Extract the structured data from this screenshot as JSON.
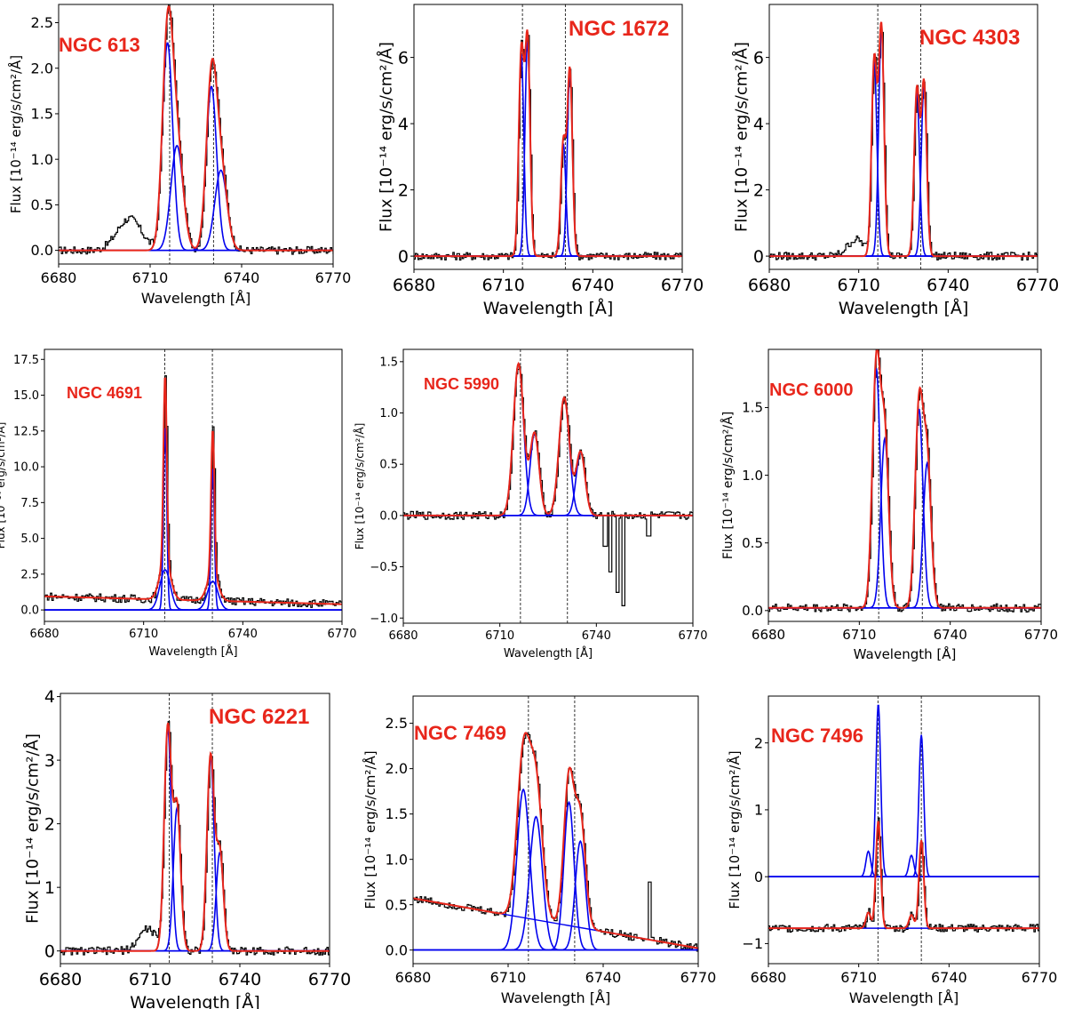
{
  "figure": {
    "description_colors": {
      "data": "#000000",
      "components": "#0000ee",
      "total_fit": "#e8261b",
      "title": "#e8261b",
      "reference_lines": "#333333"
    }
  },
  "chart_data": [
    {
      "id": "ngc613",
      "type": "line",
      "title": "NGC 613",
      "xlabel": "Wavelength [Å]",
      "ylabel": "Flux [10⁻¹⁴ erg/s/cm²/Å]",
      "xlim": [
        6680,
        6770
      ],
      "ylim": [
        -0.15,
        2.7
      ],
      "x_ticks": [
        "6680",
        "6710",
        "6740",
        "6770"
      ],
      "y_ticks": [
        "0.0",
        "0.5",
        "1.0",
        "1.5",
        "2.0",
        "2.5"
      ],
      "y_tick_values": [
        0,
        0.5,
        1.0,
        1.5,
        2.0,
        2.5
      ],
      "reference_lines": [
        6716.4,
        6730.8
      ],
      "continuum": [
        0.0,
        0.0
      ],
      "components": [
        {
          "center": 6715.7,
          "amp": 2.28,
          "sigma": 1.7
        },
        {
          "center": 6718.8,
          "amp": 1.15,
          "sigma": 2.0
        },
        {
          "center": 6730.1,
          "amp": 1.8,
          "sigma": 1.7
        },
        {
          "center": 6733.2,
          "amp": 0.88,
          "sigma": 2.0
        }
      ],
      "extra_features": [
        {
          "center": 6703,
          "amp": 0.35,
          "sigma": 4
        }
      ]
    },
    {
      "id": "ngc1672",
      "type": "line",
      "title": "NGC 1672",
      "xlabel": "Wavelength [Å]",
      "ylabel": "Flux [10⁻¹⁴ erg/s/cm²/Å]",
      "xlim": [
        6680,
        6770
      ],
      "ylim": [
        -0.4,
        7.6
      ],
      "x_ticks": [
        "6680",
        "6710",
        "6740",
        "6770"
      ],
      "y_ticks": [
        "0",
        "2",
        "4",
        "6"
      ],
      "y_tick_values": [
        0,
        2,
        4,
        6
      ],
      "reference_lines": [
        6716.4,
        6730.8
      ],
      "continuum": [
        0.0,
        0.0
      ],
      "components": [
        {
          "center": 6716.0,
          "amp": 6.1,
          "sigma": 0.85
        },
        {
          "center": 6718.1,
          "amp": 6.5,
          "sigma": 0.85
        },
        {
          "center": 6730.1,
          "amp": 3.4,
          "sigma": 0.85
        },
        {
          "center": 6732.3,
          "amp": 5.6,
          "sigma": 0.85
        }
      ],
      "extra_features": []
    },
    {
      "id": "ngc4303",
      "type": "line",
      "title": "NGC 4303",
      "xlabel": "Wavelength [Å]",
      "ylabel": "Flux [10⁻¹⁴ erg/s/cm²/Å]",
      "xlim": [
        6680,
        6770
      ],
      "ylim": [
        -0.4,
        7.6
      ],
      "x_ticks": [
        "6680",
        "6710",
        "6740",
        "6770"
      ],
      "y_ticks": [
        "0",
        "2",
        "4",
        "6"
      ],
      "y_tick_values": [
        0,
        2,
        4,
        6
      ],
      "reference_lines": [
        6716.4,
        6730.8
      ],
      "continuum": [
        0.0,
        0.0
      ],
      "components": [
        {
          "center": 6715.2,
          "amp": 5.9,
          "sigma": 0.9
        },
        {
          "center": 6717.6,
          "amp": 6.9,
          "sigma": 0.9
        },
        {
          "center": 6729.5,
          "amp": 5.0,
          "sigma": 0.9
        },
        {
          "center": 6731.9,
          "amp": 5.2,
          "sigma": 0.9
        }
      ],
      "extra_features": [
        {
          "center": 6709,
          "amp": 0.5,
          "sigma": 3
        }
      ]
    },
    {
      "id": "ngc4691",
      "type": "line",
      "title": "NGC 4691",
      "xlabel": "Wavelength [Å]",
      "ylabel": "Flux [10⁻¹⁴ erg/s/cm²/Å]",
      "xlim": [
        6680,
        6770
      ],
      "ylim": [
        -0.8,
        18.2
      ],
      "x_ticks": [
        "6680",
        "6710",
        "6740",
        "6770"
      ],
      "y_ticks": [
        "0.0",
        "2.5",
        "5.0",
        "7.5",
        "10.0",
        "12.5",
        "15.0",
        "17.5"
      ],
      "y_tick_values": [
        0,
        2.5,
        5,
        7.5,
        10,
        12.5,
        15,
        17.5
      ],
      "reference_lines": [
        6716.4,
        6730.8
      ],
      "continuum": [
        0.95,
        0.4
      ],
      "components": [
        {
          "center": 6716.5,
          "amp": 12.9,
          "sigma": 0.5
        },
        {
          "center": 6716.5,
          "amp": 2.8,
          "sigma": 1.6
        },
        {
          "center": 6730.9,
          "amp": 10.0,
          "sigma": 0.5
        },
        {
          "center": 6730.9,
          "amp": 2.0,
          "sigma": 1.6
        }
      ],
      "extra_features": []
    },
    {
      "id": "ngc5990",
      "type": "line",
      "title": "NGC 5990",
      "xlabel": "Wavelength [Å]",
      "ylabel": "Flux [10⁻¹⁴ erg/s/cm²/Å]",
      "xlim": [
        6680,
        6770
      ],
      "ylim": [
        -1.05,
        1.62
      ],
      "x_ticks": [
        "6680",
        "6710",
        "6740",
        "6770"
      ],
      "y_ticks": [
        "−1.0",
        "−0.5",
        "0.0",
        "0.5",
        "1.0",
        "1.5"
      ],
      "y_tick_values": [
        -1.0,
        -0.5,
        0,
        0.5,
        1.0,
        1.5
      ],
      "reference_lines": [
        6716.4,
        6731.0
      ],
      "continuum": [
        0.0,
        0.0
      ],
      "components": [
        {
          "center": 6715.8,
          "amp": 1.48,
          "sigma": 1.6
        },
        {
          "center": 6720.8,
          "amp": 0.8,
          "sigma": 1.4
        },
        {
          "center": 6730.0,
          "amp": 1.15,
          "sigma": 1.6
        },
        {
          "center": 6735.1,
          "amp": 0.62,
          "sigma": 1.4
        }
      ],
      "extra_features": [],
      "absorption_dips": [
        {
          "x": 6742.5,
          "y": -0.3
        },
        {
          "x": 6744.0,
          "y": -0.55
        },
        {
          "x": 6746.5,
          "y": -0.75
        },
        {
          "x": 6748.2,
          "y": -0.88
        },
        {
          "x": 6756.0,
          "y": -0.2
        }
      ]
    },
    {
      "id": "ngc6000",
      "type": "line",
      "title": "NGC 6000",
      "xlabel": "Wavelength [Å]",
      "ylabel": "Flux [10⁻¹⁴ erg/s/cm²/Å]",
      "xlim": [
        6680,
        6770
      ],
      "ylim": [
        -0.08,
        1.93
      ],
      "x_ticks": [
        "6680",
        "6710",
        "6740",
        "6770"
      ],
      "y_ticks": [
        "0.0",
        "0.5",
        "1.0",
        "1.5"
      ],
      "y_tick_values": [
        0,
        0.5,
        1.0,
        1.5
      ],
      "reference_lines": [
        6716.4,
        6730.8
      ],
      "continuum": [
        0.02,
        0.02
      ],
      "components": [
        {
          "center": 6715.6,
          "amp": 1.77,
          "sigma": 1.3
        },
        {
          "center": 6718.4,
          "amp": 1.25,
          "sigma": 1.3
        },
        {
          "center": 6729.7,
          "amp": 1.47,
          "sigma": 1.3
        },
        {
          "center": 6732.4,
          "amp": 1.07,
          "sigma": 1.3
        }
      ],
      "extra_features": []
    },
    {
      "id": "ngc6221",
      "type": "line",
      "title": "NGC 6221",
      "xlabel": "Wavelength [Å]",
      "ylabel": "Flux [10⁻¹⁴ erg/s/cm²/Å]",
      "xlim": [
        6680,
        6770
      ],
      "ylim": [
        -0.2,
        4.05
      ],
      "x_ticks": [
        "6680",
        "6710",
        "6740",
        "6770"
      ],
      "y_ticks": [
        "0",
        "1",
        "2",
        "3",
        "4"
      ],
      "y_tick_values": [
        0,
        1,
        2,
        3,
        4
      ],
      "reference_lines": [
        6716.4,
        6730.8
      ],
      "continuum": [
        0.0,
        0.0
      ],
      "components": [
        {
          "center": 6715.9,
          "amp": 3.5,
          "sigma": 1.2
        },
        {
          "center": 6719.0,
          "amp": 2.25,
          "sigma": 1.2
        },
        {
          "center": 6730.2,
          "amp": 3.05,
          "sigma": 1.2
        },
        {
          "center": 6733.3,
          "amp": 1.55,
          "sigma": 1.2
        }
      ],
      "extra_features": [
        {
          "center": 6709,
          "amp": 0.35,
          "sigma": 3
        }
      ]
    },
    {
      "id": "ngc7469",
      "type": "line",
      "title": "NGC 7469",
      "xlabel": "Wavelength [Å]",
      "ylabel": "Flux [10⁻¹⁴ erg/s/cm²/Å]",
      "xlim": [
        6680,
        6770
      ],
      "ylim": [
        -0.15,
        2.8
      ],
      "x_ticks": [
        "6680",
        "6710",
        "6740",
        "6770"
      ],
      "y_ticks": [
        "0.0",
        "0.5",
        "1.0",
        "1.5",
        "2.0",
        "2.5"
      ],
      "y_tick_values": [
        0,
        0.5,
        1.0,
        1.5,
        2.0,
        2.5
      ],
      "reference_lines": [
        6716.4,
        6731.0
      ],
      "continuum": [
        0.57,
        0.02
      ],
      "components": [
        {
          "center": 6714.8,
          "amp": 1.77,
          "sigma": 2.0
        },
        {
          "center": 6718.8,
          "amp": 1.47,
          "sigma": 2.0
        },
        {
          "center": 6729.2,
          "amp": 1.63,
          "sigma": 1.6
        },
        {
          "center": 6732.8,
          "amp": 1.2,
          "sigma": 1.6
        }
      ],
      "extra_features": [],
      "spike": {
        "x": 6754.5,
        "y": 0.75
      }
    },
    {
      "id": "ngc7496",
      "type": "line",
      "title": "NGC 7496",
      "xlabel": "Wavelength [Å]",
      "ylabel": "Flux [10⁻¹⁴ erg/s/cm²/Å]",
      "xlim": [
        6680,
        6770
      ],
      "ylim": [
        -1.3,
        2.7
      ],
      "x_ticks": [
        "6680",
        "6710",
        "6740",
        "6770"
      ],
      "y_ticks": [
        "−1",
        "0",
        "1",
        "2"
      ],
      "y_tick_values": [
        -1,
        0,
        1,
        2
      ],
      "reference_lines": [
        6716.4,
        6730.8
      ],
      "continuum": [
        -0.77,
        -0.77
      ],
      "components": [
        {
          "center": 6713.2,
          "amp": 0.38,
          "sigma": 0.8
        },
        {
          "center": 6716.5,
          "amp": 2.58,
          "sigma": 0.8
        },
        {
          "center": 6727.5,
          "amp": 0.32,
          "sigma": 0.8
        },
        {
          "center": 6730.8,
          "amp": 2.12,
          "sigma": 0.8
        }
      ],
      "component_baseline": 0.0,
      "extra_features": []
    }
  ]
}
